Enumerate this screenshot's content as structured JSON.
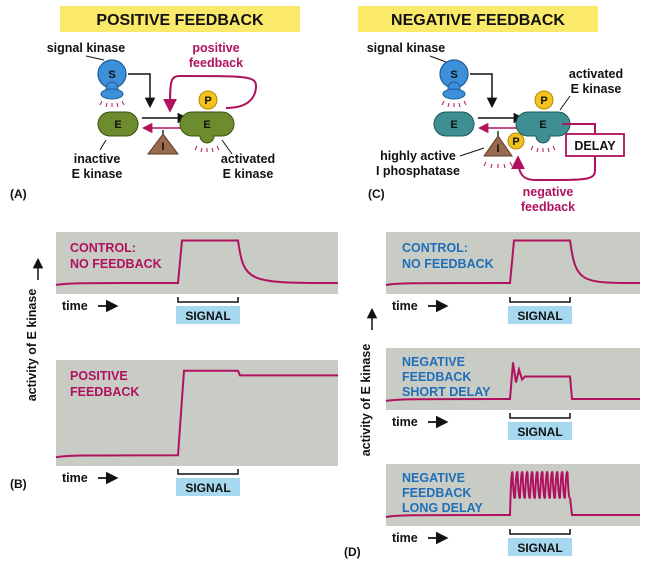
{
  "colors": {
    "header_bg": "#fbe96a",
    "plot_bg": "#c9cbc5",
    "trace": "#b0125f",
    "signal_box": "#a6d8ef",
    "magenta_text": "#b0125f",
    "blue_text": "#1f6fb8",
    "kinase_blue": "#3d8fd9",
    "kinase_green": "#6d8c2e",
    "kinase_teal": "#3f8f92",
    "phosphatase": "#9a6a4e",
    "phosphate": "#f2c21d"
  },
  "headers": {
    "positive": "POSITIVE FEEDBACK",
    "negative": "NEGATIVE FEEDBACK"
  },
  "panel_letters": {
    "a": "(A)",
    "b": "(B)",
    "c": "(C)",
    "d": "(D)"
  },
  "nodes": {
    "s": "S",
    "e": "E",
    "p": "P",
    "i": "I"
  },
  "diagram_a": {
    "signal_kinase": "signal kinase",
    "feedback_line1": "positive",
    "feedback_line2": "feedback",
    "inactive_line1": "inactive",
    "inactive_line2": "E kinase",
    "activated_line1": "activated",
    "activated_line2": "E kinase"
  },
  "diagram_c": {
    "signal_kinase": "signal kinase",
    "activated_line1": "activated",
    "activated_line2": "E kinase",
    "delay": "DELAY",
    "phosphatase_line1": "highly active",
    "phosphatase_line2": "I phosphatase",
    "feedback_line1": "negative",
    "feedback_line2": "feedback"
  },
  "axis": {
    "ylabel": "activity of E kinase",
    "time": "time",
    "signal": "SIGNAL"
  },
  "plots": {
    "b_control": {
      "line1": "CONTROL:",
      "line2": "NO FEEDBACK"
    },
    "b_positive": {
      "line1": "POSITIVE",
      "line2": "FEEDBACK"
    },
    "d_control": {
      "line1": "CONTROL:",
      "line2": "NO FEEDBACK"
    },
    "d_short": {
      "line1": "NEGATIVE",
      "line2": "FEEDBACK",
      "line3": "SHORT DELAY"
    },
    "d_long": {
      "line1": "NEGATIVE",
      "line2": "FEEDBACK",
      "line3": "LONG DELAY"
    }
  },
  "chart_data": [
    {
      "type": "line",
      "title": "CONTROL: NO FEEDBACK",
      "xlabel": "time",
      "ylabel": "activity of E kinase",
      "description_of_trace": "low basal activity, rises to high plateau during SIGNAL, returns to basal after signal ends",
      "x": [
        "before",
        "signal on",
        "signal off",
        "after"
      ],
      "y": [
        0.1,
        0.95,
        0.95,
        0.1
      ],
      "ylim": [
        0,
        1
      ]
    },
    {
      "type": "line",
      "title": "POSITIVE FEEDBACK",
      "xlabel": "time",
      "ylabel": "activity of E kinase",
      "description_of_trace": "low basal activity, rises to high level during SIGNAL, remains high after signal ends",
      "x": [
        "before",
        "signal on",
        "signal off",
        "after"
      ],
      "y": [
        0.05,
        0.95,
        0.95,
        0.9
      ],
      "ylim": [
        0,
        1
      ]
    },
    {
      "type": "line",
      "title": "NEGATIVE FEEDBACK SHORT DELAY",
      "xlabel": "time",
      "ylabel": "activity of E kinase",
      "description_of_trace": "brief damped oscillation then steady intermediate level during SIGNAL, returns to basal after",
      "x": [
        "before",
        "signal on",
        "signal off",
        "after"
      ],
      "y": [
        0.1,
        0.55,
        0.55,
        0.1
      ],
      "ylim": [
        0,
        1
      ]
    },
    {
      "type": "line",
      "title": "NEGATIVE FEEDBACK LONG DELAY",
      "xlabel": "time",
      "ylabel": "activity of E kinase",
      "description_of_trace": "sustained oscillations during SIGNAL, returns to basal after",
      "x": [
        "before",
        "signal on",
        "signal off",
        "after"
      ],
      "y": [
        0.1,
        0.75,
        0.75,
        0.1
      ],
      "oscillations": 12,
      "ylim": [
        0,
        1
      ]
    }
  ]
}
